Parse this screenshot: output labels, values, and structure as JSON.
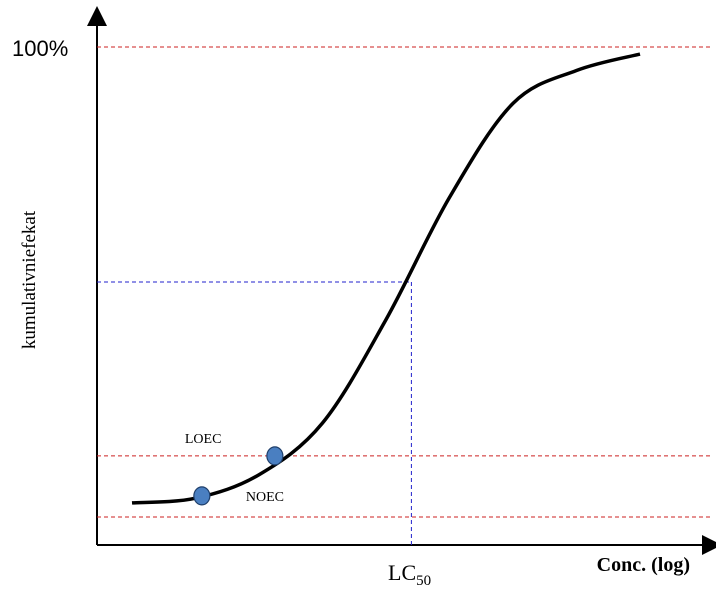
{
  "chart_data": {
    "type": "line",
    "ylabel": "kumulativniefekat",
    "xlabel_prefix": "Conc.",
    "xlabel_bold": "(log)",
    "y_top_label": "100%",
    "x_marker": {
      "base": "LC",
      "sub": "50"
    },
    "series": [
      {
        "values": [
          [
            0,
            0.03
          ],
          [
            1,
            0.04
          ],
          [
            2,
            0.09
          ],
          [
            3,
            0.2
          ],
          [
            4,
            0.42
          ],
          [
            5,
            0.68
          ],
          [
            6,
            0.88
          ],
          [
            7,
            0.95
          ],
          [
            8,
            0.985
          ]
        ]
      }
    ],
    "points": [
      {
        "label": "NOEC",
        "x": 1.1,
        "y": 0.045
      },
      {
        "label": "LOEC",
        "x": 2.25,
        "y": 0.13
      }
    ],
    "reference_lines": {
      "top_y": 1.0,
      "loec_y": 0.13,
      "noec_y": 0.0,
      "lc50_x": 4.4,
      "lc50_y": 0.5
    },
    "colors": {
      "curve": "#000000",
      "red_dashed": "#cc2222",
      "blue_dashed": "#2222cc",
      "point_fill": "#4a7fc1",
      "point_stroke": "#1f3f6b"
    }
  }
}
